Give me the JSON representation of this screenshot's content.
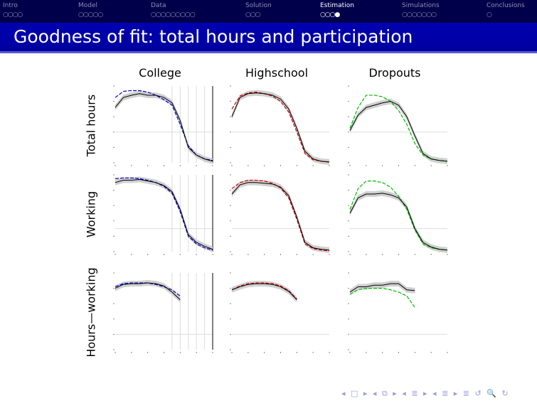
{
  "nav": {
    "sections": [
      {
        "label": "Intro",
        "dots": "○○○○",
        "active": false
      },
      {
        "label": "Model",
        "dots": "○○○○○",
        "active": false
      },
      {
        "label": "Data",
        "dots": "○○○○○○○○○",
        "active": false
      },
      {
        "label": "Solution",
        "dots": "○○○",
        "active": false
      },
      {
        "label": "Estimation",
        "dots": "○○○●",
        "active": true
      },
      {
        "label": "Simulations",
        "dots": "○○○○○○○",
        "active": false
      },
      {
        "label": "Conclusions",
        "dots": "○",
        "active": false
      }
    ]
  },
  "title": "Goodness of fit: total hours and participation",
  "bottom_nav": "◂ □ ▸ ◂ ⧉ ▸ ◂ ≣ ▸ ◂ ≣ ▸ ≣ ↺ 🔍 ↻",
  "chart_data": {
    "type": "line",
    "columns": [
      "College",
      "Highschool",
      "Dropouts"
    ],
    "rows": [
      "Total hours",
      "Working",
      "Hours—working"
    ],
    "colors": {
      "College": "#0000cc",
      "Highschool": "#cc0000",
      "Dropouts": "#00bb00",
      "data": "#000000",
      "band": "#d0d0d0"
    },
    "note": "y values normalized 0-1 within each panel; data series black with grey CI band, model dashed colored",
    "panels": [
      {
        "row": "Total hours",
        "col": "College",
        "data": [
          0.72,
          0.85,
          0.88,
          0.9,
          0.88,
          0.88,
          0.85,
          0.78,
          0.55,
          0.2,
          0.1,
          0.05,
          0.02
        ],
        "model": [
          0.85,
          0.93,
          0.94,
          0.94,
          0.92,
          0.88,
          0.82,
          0.75,
          0.5,
          0.22,
          0.1,
          0.05,
          0.03
        ]
      },
      {
        "row": "Total hours",
        "col": "Highschool",
        "data": [
          0.6,
          0.85,
          0.9,
          0.91,
          0.9,
          0.88,
          0.83,
          0.7,
          0.45,
          0.15,
          0.05,
          0.02,
          0.01
        ],
        "model": [
          0.7,
          0.87,
          0.91,
          0.92,
          0.9,
          0.87,
          0.8,
          0.66,
          0.4,
          0.12,
          0.04,
          0.02,
          0.01
        ]
      },
      {
        "row": "Total hours",
        "col": "Dropouts",
        "data": [
          0.42,
          0.62,
          0.72,
          0.75,
          0.78,
          0.8,
          0.75,
          0.6,
          0.35,
          0.12,
          0.05,
          0.03,
          0.02
        ],
        "model": [
          0.45,
          0.72,
          0.88,
          0.88,
          0.86,
          0.8,
          0.68,
          0.5,
          0.25,
          0.1,
          0.05,
          0.03,
          0.02
        ]
      },
      {
        "row": "Working",
        "col": "College",
        "data": [
          0.9,
          0.93,
          0.93,
          0.94,
          0.92,
          0.9,
          0.86,
          0.78,
          0.55,
          0.22,
          0.12,
          0.07,
          0.03
        ],
        "model": [
          0.95,
          0.96,
          0.96,
          0.95,
          0.93,
          0.9,
          0.85,
          0.76,
          0.52,
          0.2,
          0.1,
          0.05,
          0.02
        ]
      },
      {
        "row": "Working",
        "col": "Highschool",
        "data": [
          0.75,
          0.87,
          0.9,
          0.9,
          0.89,
          0.88,
          0.84,
          0.73,
          0.45,
          0.12,
          0.05,
          0.03,
          0.02
        ],
        "model": [
          0.82,
          0.9,
          0.93,
          0.93,
          0.92,
          0.89,
          0.83,
          0.7,
          0.42,
          0.1,
          0.04,
          0.02,
          0.01
        ]
      },
      {
        "row": "Working",
        "col": "Dropouts",
        "data": [
          0.5,
          0.7,
          0.75,
          0.75,
          0.76,
          0.74,
          0.7,
          0.58,
          0.3,
          0.12,
          0.06,
          0.03,
          0.02
        ],
        "model": [
          0.55,
          0.82,
          0.92,
          0.92,
          0.9,
          0.84,
          0.72,
          0.55,
          0.28,
          0.1,
          0.05,
          0.03,
          0.02
        ]
      },
      {
        "row": "Hours—working",
        "col": "College",
        "data": [
          0.8,
          0.85,
          0.86,
          0.86,
          0.87,
          0.86,
          0.83,
          0.75,
          0.65,
          null,
          null,
          null,
          null
        ],
        "model": [
          0.82,
          0.86,
          0.87,
          0.87,
          0.87,
          0.85,
          0.82,
          0.78,
          0.7,
          null,
          null,
          null,
          null
        ]
      },
      {
        "row": "Hours—working",
        "col": "Highschool",
        "data": [
          0.78,
          0.82,
          0.85,
          0.86,
          0.86,
          0.85,
          0.82,
          0.76,
          0.65,
          null,
          null,
          null,
          null
        ],
        "model": [
          0.78,
          0.83,
          0.86,
          0.87,
          0.87,
          0.86,
          0.83,
          0.77,
          0.66,
          null,
          null,
          null,
          null
        ]
      },
      {
        "row": "Hours—working",
        "col": "Dropouts",
        "data": [
          0.75,
          0.82,
          0.82,
          0.84,
          0.84,
          0.86,
          0.86,
          0.78,
          0.77,
          null,
          null,
          null,
          null
        ],
        "model": [
          0.72,
          0.78,
          0.8,
          0.8,
          0.8,
          0.78,
          0.75,
          0.7,
          0.55,
          null,
          null,
          null,
          null
        ]
      }
    ]
  }
}
